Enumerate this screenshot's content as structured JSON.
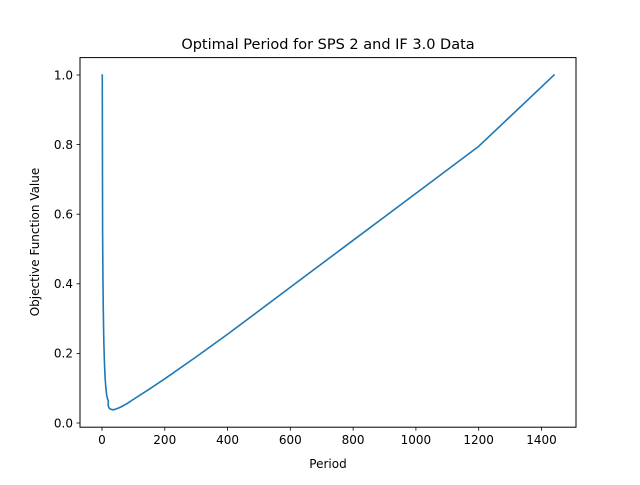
{
  "chart_data": {
    "type": "line",
    "title": "Optimal Period for SPS 2 and IF 3.0 Data",
    "xlabel": "Period",
    "ylabel": "Objective Function Value",
    "xlim": [
      -70,
      1510
    ],
    "ylim": [
      -0.012,
      1.05
    ],
    "xticks": [
      0,
      200,
      400,
      600,
      800,
      1000,
      1200,
      1400
    ],
    "xtick_labels": [
      "0",
      "200",
      "400",
      "600",
      "800",
      "1000",
      "1200",
      "1400"
    ],
    "yticks": [
      0.0,
      0.2,
      0.4,
      0.6,
      0.8,
      1.0
    ],
    "ytick_labels": [
      "0.0",
      "0.2",
      "0.4",
      "0.6",
      "0.8",
      "1.0"
    ],
    "grid": false,
    "series": [
      {
        "color": "#1f77b4",
        "x": [
          1,
          1.5,
          2,
          3,
          4,
          5,
          6,
          8,
          10,
          12,
          15,
          18,
          20,
          20,
          22,
          25,
          30,
          35,
          40,
          50,
          60,
          80,
          100,
          150,
          200,
          300,
          400,
          600,
          800,
          1000,
          1200,
          1440
        ],
        "y": [
          1.0,
          0.75,
          0.55,
          0.42,
          0.34,
          0.28,
          0.23,
          0.17,
          0.13,
          0.105,
          0.08,
          0.068,
          0.065,
          0.05,
          0.044,
          0.041,
          0.039,
          0.038,
          0.039,
          0.042,
          0.046,
          0.056,
          0.068,
          0.097,
          0.127,
          0.19,
          0.255,
          0.39,
          0.525,
          0.66,
          0.795,
          1.0
        ]
      }
    ]
  }
}
